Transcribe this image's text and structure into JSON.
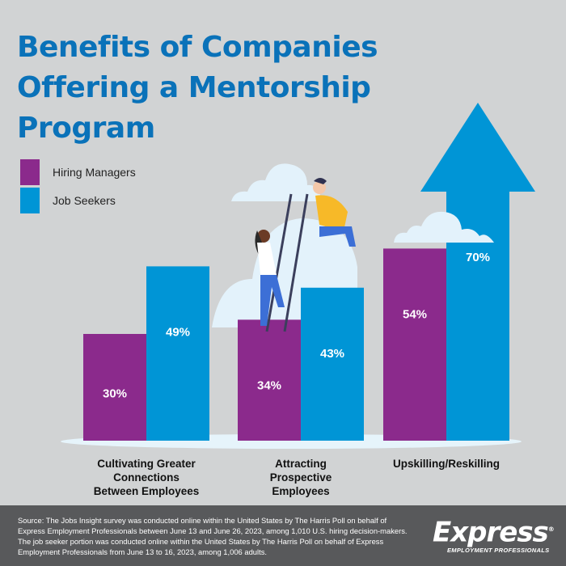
{
  "chart_data": {
    "type": "bar",
    "title": "Benefits of Companies Offering a Mentorship Program",
    "categories": [
      "Cultivating Greater Connections Between Employees",
      "Attracting Prospective Employees",
      "Upskilling/Reskilling"
    ],
    "category_lines": [
      [
        "Cultivating Greater",
        "Connections",
        "Between Employees"
      ],
      [
        "Attracting",
        "Prospective",
        "Employees"
      ],
      [
        "Upskilling/Reskilling"
      ]
    ],
    "series": [
      {
        "name": "Hiring Managers",
        "color": "#8b2a8c",
        "values": [
          30,
          34,
          54
        ]
      },
      {
        "name": "Job Seekers",
        "color": "#0095d6",
        "values": [
          49,
          43,
          70
        ]
      }
    ],
    "value_suffix": "%",
    "ylim": [
      0,
      100
    ],
    "legend_position": "top-left",
    "grid": false
  },
  "footer": {
    "source": "Source: The Jobs Insight survey was conducted online within the United States by The Harris Poll on behalf of Express Employment Professionals between June 13 and June 26, 2023, among 1,010 U.S. hiring decision-makers. The job seeker portion was conducted online within the United States by The Harris Poll on behalf of Express Employment Professionals from June 13 to 16, 2023, among 1,006 adults.",
    "logo_text": "Express",
    "logo_subtext": "EMPLOYMENT PROFESSIONALS"
  }
}
